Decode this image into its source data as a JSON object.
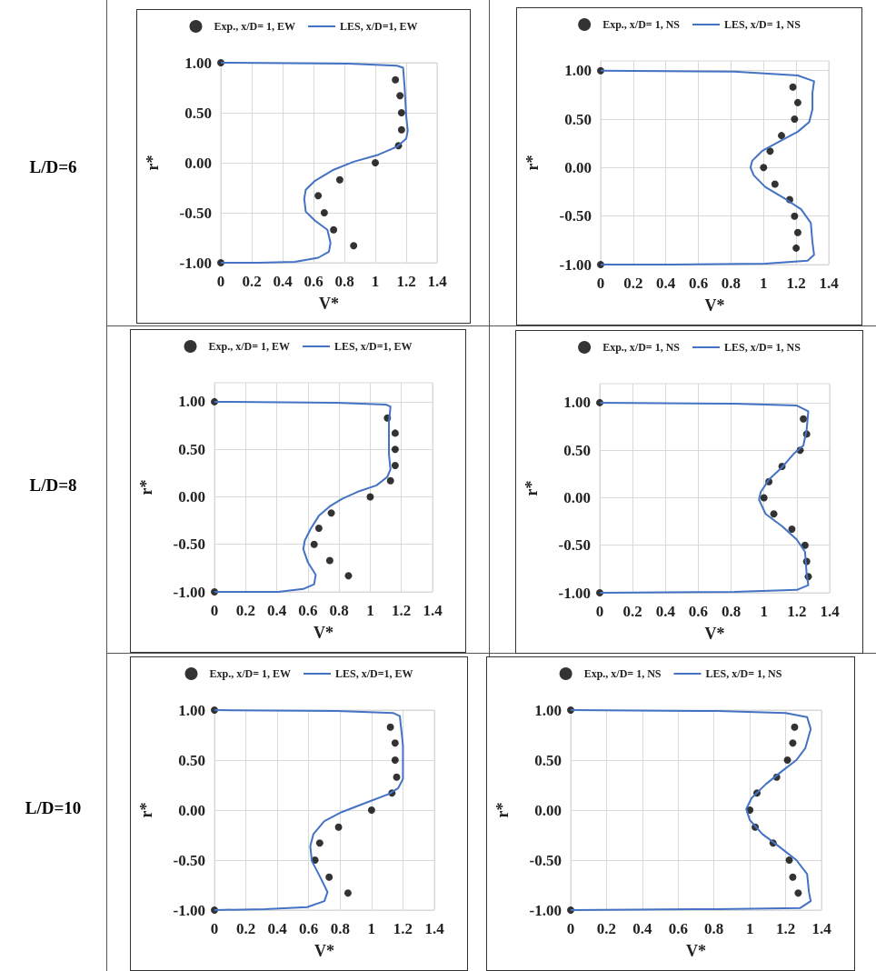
{
  "chart_data": [
    {
      "type": "scatter",
      "xlabel": "V*",
      "ylabel": "r*",
      "annotations": [
        "L/D=6"
      ],
      "legend": "top",
      "grid": true,
      "xlim": [
        0,
        1.4
      ],
      "xticks": [
        0,
        0.2,
        0.4,
        0.6,
        0.8,
        1,
        1.2,
        1.4
      ],
      "ylim": [
        -1,
        1
      ],
      "yticks": [
        {
          "value": -1,
          "label": "-1.00"
        },
        {
          "value": -0.5,
          "label": "-0.50"
        },
        {
          "value": 0,
          "label": "0.00"
        },
        {
          "value": 0.5,
          "label": "0.50"
        },
        {
          "value": 1,
          "label": "1.00"
        }
      ],
      "series": [
        {
          "name": "Exp., x/D= 1, EW",
          "marker": "circle",
          "color": "#000000",
          "x": [
            0,
            1.13,
            1.16,
            1.17,
            1.17,
            1.15,
            1.0,
            0.77,
            0.63,
            0.67,
            0.73,
            0.86,
            0
          ],
          "values": [
            1,
            0.83,
            0.67,
            0.5,
            0.33,
            0.17,
            0,
            -0.17,
            -0.33,
            -0.5,
            -0.67,
            -0.83,
            -1
          ]
        },
        {
          "name": "LES, x/D=1, EW",
          "type": "line",
          "marker": "none",
          "color": "#4472c4",
          "x": [
            0,
            0.83,
            1.14,
            1.18,
            1.19,
            1.2,
            1.21,
            1.2,
            1.14,
            1.02,
            0.86,
            0.73,
            0.61,
            0.55,
            0.54,
            0.55,
            0.61,
            0.69,
            0.71,
            0.7,
            0.63,
            0.48,
            0.24,
            0
          ],
          "values": [
            1,
            0.99,
            0.97,
            0.95,
            0.75,
            0.47,
            0.32,
            0.24,
            0.16,
            0.08,
            0.01,
            -0.07,
            -0.18,
            -0.27,
            -0.36,
            -0.49,
            -0.58,
            -0.67,
            -0.8,
            -0.89,
            -0.95,
            -0.99,
            -1,
            -1
          ]
        }
      ]
    },
    {
      "type": "scatter",
      "xlabel": "V*",
      "ylabel": "r*",
      "legend": "top",
      "grid": true,
      "xlim": [
        0,
        1.4
      ],
      "xticks": [
        0,
        0.2,
        0.4,
        0.6,
        0.8,
        1,
        1.2,
        1.4
      ],
      "ylim": [
        -1,
        1.1
      ],
      "yticks": [
        {
          "value": -1,
          "label": "-1.00"
        },
        {
          "value": -0.5,
          "label": "-0.50"
        },
        {
          "value": 0,
          "label": "0.00"
        },
        {
          "value": 0.5,
          "label": "0.50"
        },
        {
          "value": 1,
          "label": "1.00"
        }
      ],
      "series": [
        {
          "name": "Exp., x/D= 1, NS",
          "marker": "circle",
          "color": "#000000",
          "x": [
            0,
            1.18,
            1.21,
            1.19,
            1.11,
            1.04,
            1.0,
            1.07,
            1.16,
            1.19,
            1.21,
            1.2,
            0
          ],
          "values": [
            1,
            0.83,
            0.67,
            0.5,
            0.33,
            0.17,
            0,
            -0.17,
            -0.33,
            -0.5,
            -0.67,
            -0.83,
            -1
          ]
        },
        {
          "name": "LES, x/D= 1, NS",
          "type": "line",
          "marker": "none",
          "color": "#4472c4",
          "x": [
            0,
            0.82,
            1.21,
            1.31,
            1.3,
            1.3,
            1.28,
            1.21,
            1.11,
            0.99,
            0.93,
            0.92,
            0.94,
            1.01,
            1.13,
            1.23,
            1.29,
            1.3,
            1.31,
            1.27,
            1.01,
            0.43,
            0
          ],
          "values": [
            1,
            0.99,
            0.95,
            0.89,
            0.77,
            0.6,
            0.47,
            0.37,
            0.28,
            0.17,
            0.07,
            0,
            -0.08,
            -0.2,
            -0.32,
            -0.43,
            -0.57,
            -0.77,
            -0.9,
            -0.96,
            -0.99,
            -1,
            -1
          ]
        }
      ]
    },
    {
      "type": "scatter",
      "xlabel": "V*",
      "ylabel": "r*",
      "annotations": [
        "L/D=8"
      ],
      "legend": "top",
      "grid": true,
      "xlim": [
        0,
        1.4
      ],
      "xticks": [
        0,
        0.2,
        0.4,
        0.6,
        0.8,
        1,
        1.2,
        1.4
      ],
      "ylim": [
        -1,
        1.2
      ],
      "yticks": [
        {
          "value": -1,
          "label": "-1.00"
        },
        {
          "value": -0.5,
          "label": "-0.50"
        },
        {
          "value": 0,
          "label": "0.00"
        },
        {
          "value": 0.5,
          "label": "0.50"
        },
        {
          "value": 1,
          "label": "1.00"
        }
      ],
      "series": [
        {
          "name": "Exp., x/D= 1, EW",
          "marker": "circle",
          "color": "#000000",
          "x": [
            0,
            1.11,
            1.16,
            1.16,
            1.16,
            1.13,
            1.0,
            0.75,
            0.67,
            0.64,
            0.74,
            0.86,
            0
          ],
          "values": [
            1,
            0.83,
            0.67,
            0.5,
            0.33,
            0.17,
            0,
            -0.17,
            -0.33,
            -0.5,
            -0.67,
            -0.83,
            -1
          ]
        },
        {
          "name": "LES, x/D=1, EW",
          "type": "line",
          "marker": "none",
          "color": "#4472c4",
          "x": [
            0,
            0.78,
            1.1,
            1.13,
            1.12,
            1.12,
            1.13,
            1.11,
            1.04,
            0.93,
            0.82,
            0.74,
            0.67,
            0.62,
            0.58,
            0.57,
            0.6,
            0.65,
            0.64,
            0.57,
            0.41,
            0
          ],
          "values": [
            1,
            0.99,
            0.97,
            0.95,
            0.78,
            0.45,
            0.29,
            0.21,
            0.12,
            0.06,
            -0.02,
            -0.1,
            -0.2,
            -0.33,
            -0.46,
            -0.55,
            -0.69,
            -0.82,
            -0.92,
            -0.97,
            -1,
            -1
          ]
        }
      ]
    },
    {
      "type": "scatter",
      "xlabel": "V*",
      "ylabel": "r*",
      "legend": "top",
      "grid": true,
      "xlim": [
        0,
        1.4
      ],
      "xticks": [
        0,
        0.2,
        0.4,
        0.6,
        0.8,
        1,
        1.2,
        1.4
      ],
      "ylim": [
        -1,
        1.2
      ],
      "yticks": [
        {
          "value": -1,
          "label": "-1.00"
        },
        {
          "value": -0.5,
          "label": "-0.50"
        },
        {
          "value": 0,
          "label": "0.00"
        },
        {
          "value": 0.5,
          "label": "0.50"
        },
        {
          "value": 1,
          "label": "1.00"
        }
      ],
      "series": [
        {
          "name": "Exp., x/D= 1, NS",
          "marker": "circle",
          "color": "#000000",
          "x": [
            0,
            1.24,
            1.26,
            1.22,
            1.11,
            1.03,
            1.0,
            1.06,
            1.17,
            1.25,
            1.26,
            1.27,
            0
          ],
          "values": [
            1,
            0.83,
            0.67,
            0.5,
            0.33,
            0.17,
            0,
            -0.17,
            -0.33,
            -0.5,
            -0.67,
            -0.83,
            -1
          ]
        },
        {
          "name": "LES, x/D= 1, NS",
          "type": "line",
          "marker": "none",
          "color": "#4472c4",
          "x": [
            0,
            0.82,
            1.2,
            1.27,
            1.26,
            1.24,
            1.18,
            1.11,
            1.03,
            0.98,
            0.97,
            1.01,
            1.11,
            1.2,
            1.25,
            1.26,
            1.27,
            1.2,
            0.82,
            0
          ],
          "values": [
            1,
            0.99,
            0.97,
            0.91,
            0.72,
            0.55,
            0.46,
            0.32,
            0.19,
            0.06,
            -0.02,
            -0.17,
            -0.3,
            -0.44,
            -0.57,
            -0.8,
            -0.92,
            -0.97,
            -0.99,
            -1
          ]
        }
      ]
    },
    {
      "type": "scatter",
      "xlabel": "V*",
      "ylabel": "r*",
      "annotations": [
        "L/D=10"
      ],
      "legend": "top",
      "grid": true,
      "xlim": [
        0,
        1.4
      ],
      "xticks": [
        0,
        0.2,
        0.4,
        0.6,
        0.8,
        1,
        1.2,
        1.4
      ],
      "ylim": [
        -1,
        1
      ],
      "yticks": [
        {
          "value": -1,
          "label": "-1.00"
        },
        {
          "value": -0.5,
          "label": "-0.50"
        },
        {
          "value": 0,
          "label": "0.00"
        },
        {
          "value": 0.5,
          "label": "0.50"
        },
        {
          "value": 1,
          "label": "1.00"
        }
      ],
      "series": [
        {
          "name": "Exp., x/D= 1, EW",
          "marker": "circle",
          "color": "#000000",
          "x": [
            0,
            1.12,
            1.15,
            1.15,
            1.16,
            1.13,
            1.0,
            0.79,
            0.67,
            0.64,
            0.73,
            0.85,
            0
          ],
          "values": [
            1,
            0.83,
            0.67,
            0.5,
            0.33,
            0.17,
            0,
            -0.17,
            -0.33,
            -0.5,
            -0.67,
            -0.83,
            -1
          ]
        },
        {
          "name": "LES, x/D=1, EW",
          "type": "line",
          "marker": "none",
          "color": "#4472c4",
          "x": [
            0,
            0.78,
            1.14,
            1.18,
            1.2,
            1.2,
            1.17,
            1.11,
            0.96,
            0.81,
            0.7,
            0.63,
            0.61,
            0.62,
            0.67,
            0.72,
            0.7,
            0.59,
            0.32,
            0
          ],
          "values": [
            1,
            0.99,
            0.97,
            0.94,
            0.65,
            0.31,
            0.22,
            0.16,
            0.07,
            -0.02,
            -0.11,
            -0.24,
            -0.36,
            -0.51,
            -0.66,
            -0.82,
            -0.91,
            -0.97,
            -0.99,
            -1
          ]
        }
      ]
    },
    {
      "type": "scatter",
      "xlabel": "V*",
      "ylabel": "r*",
      "legend": "top",
      "grid": true,
      "xlim": [
        0,
        1.4
      ],
      "xticks": [
        0,
        0.2,
        0.4,
        0.6,
        0.8,
        1,
        1.2,
        1.4
      ],
      "ylim": [
        -1,
        1
      ],
      "yticks": [
        {
          "value": -1,
          "label": "-1.00"
        },
        {
          "value": -0.5,
          "label": "-0.50"
        },
        {
          "value": 0,
          "label": "0.00"
        },
        {
          "value": 0.5,
          "label": "0.50"
        },
        {
          "value": 1,
          "label": "1.00"
        }
      ],
      "series": [
        {
          "name": "Exp., x/D= 1, NS",
          "marker": "circle",
          "color": "#000000",
          "x": [
            0,
            1.25,
            1.24,
            1.21,
            1.15,
            1.04,
            1.0,
            1.03,
            1.13,
            1.22,
            1.24,
            1.27,
            0
          ],
          "values": [
            1,
            0.83,
            0.67,
            0.5,
            0.33,
            0.17,
            0,
            -0.17,
            -0.33,
            -0.5,
            -0.67,
            -0.83,
            -1
          ]
        },
        {
          "name": "LES, x/D= 1, NS",
          "type": "line",
          "marker": "none",
          "color": "#4472c4",
          "x": [
            0,
            0.82,
            1.2,
            1.32,
            1.34,
            1.31,
            1.26,
            1.18,
            1.09,
            1.01,
            0.98,
            1.0,
            1.07,
            1.16,
            1.26,
            1.32,
            1.33,
            1.34,
            1.28,
            0.82,
            0
          ],
          "values": [
            1,
            0.99,
            0.97,
            0.93,
            0.81,
            0.62,
            0.5,
            0.39,
            0.26,
            0.12,
            0.01,
            -0.1,
            -0.24,
            -0.36,
            -0.5,
            -0.64,
            -0.82,
            -0.91,
            -0.98,
            -0.99,
            -1
          ]
        }
      ]
    }
  ]
}
